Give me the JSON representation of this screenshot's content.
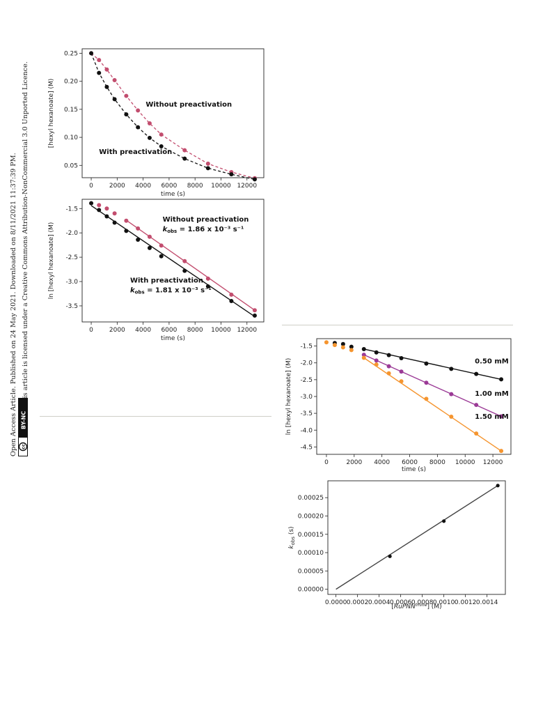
{
  "sidebar": {
    "line1": "Open Access Article. Published on 24 May 2021. Downloaded on 8/11/2021 11:37:39 PM.",
    "line2": "This article is licensed under a Creative Commons Attribution-NonCommercial 3.0 Unported Licence.",
    "badge_cc": "cc",
    "badge_text": "BY-NC"
  },
  "colors": {
    "black": "#111111",
    "pink": "#c24d6e",
    "purple": "#9b3a96",
    "orange": "#f5952f",
    "line_gray": "#444444"
  },
  "chart_data": [
    {
      "type": "line",
      "xlabel": "time (s)",
      "ylabel": "[hexyl hexanoate] (M)",
      "xlim": [
        -700,
        13300
      ],
      "ylim": [
        0.028,
        0.258
      ],
      "xticks": [
        0,
        2000,
        4000,
        6000,
        8000,
        10000,
        12000
      ],
      "yticks": [
        0.05,
        0.1,
        0.15,
        0.2,
        0.25
      ],
      "ytick_labels": [
        "0.05",
        "0.10",
        "0.15",
        "0.20",
        "0.25"
      ],
      "annotations": [
        {
          "text": "Without preactivation",
          "x": 4200,
          "y": 0.155
        },
        {
          "text": "With preactivation",
          "x": 600,
          "y": 0.07
        }
      ],
      "series": [
        {
          "color": "#c24d6e",
          "dashed": true,
          "x": [
            0,
            600,
            1200,
            1800,
            2700,
            3600,
            4500,
            5400,
            7200,
            9000,
            10800,
            12600
          ],
          "y": [
            0.25,
            0.238,
            0.221,
            0.202,
            0.174,
            0.148,
            0.125,
            0.105,
            0.077,
            0.053,
            0.038,
            0.027
          ]
        },
        {
          "color": "#111111",
          "dashed": true,
          "x": [
            0,
            600,
            1200,
            1800,
            2700,
            3600,
            4500,
            5400,
            7200,
            9000,
            10800,
            12600
          ],
          "y": [
            0.25,
            0.215,
            0.19,
            0.168,
            0.141,
            0.118,
            0.099,
            0.084,
            0.062,
            0.045,
            0.034,
            0.025
          ]
        }
      ]
    },
    {
      "type": "line",
      "xlabel": "time (s)",
      "ylabel": "ln [hexyl hexanoate] (M)",
      "xlim": [
        -700,
        13300
      ],
      "ylim": [
        -3.83,
        -1.31
      ],
      "xticks": [
        0,
        2000,
        4000,
        6000,
        8000,
        10000,
        12000
      ],
      "yticks": [
        -1.5,
        -2.0,
        -2.5,
        -3.0,
        -3.5
      ],
      "ytick_labels": [
        "-1.5",
        "-2.0",
        "-2.5",
        "-3.0",
        "-3.5"
      ],
      "annotations": [
        {
          "text": "Without preactivation",
          "x": 5500,
          "y": -1.77
        },
        {
          "text": "kobs = 1.86 x 10⁻³ s⁻¹",
          "x": 5500,
          "y": -1.97
        },
        {
          "text": "With preactivation",
          "x": 3000,
          "y": -3.02
        },
        {
          "text": "kobs = 1.81 x 10⁻³ s⁻¹",
          "x": 3000,
          "y": -3.22
        }
      ],
      "series": [
        {
          "color": "#c24d6e",
          "fit": [
            [
              2700,
              -1.74
            ],
            [
              12600,
              -3.59
            ]
          ],
          "x": [
            600,
            1200,
            1800,
            2700,
            3600,
            4500,
            5400,
            7200,
            9000,
            10800,
            12600
          ],
          "y": [
            -1.43,
            -1.5,
            -1.6,
            -1.75,
            -1.91,
            -2.08,
            -2.26,
            -2.58,
            -2.94,
            -3.27,
            -3.59
          ]
        },
        {
          "color": "#111111",
          "fit": [
            [
              0,
              -1.44
            ],
            [
              12600,
              -3.72
            ]
          ],
          "x": [
            0,
            600,
            1200,
            1800,
            2700,
            3600,
            4500,
            5400,
            7200,
            9000,
            10800,
            12600
          ],
          "y": [
            -1.39,
            -1.53,
            -1.66,
            -1.79,
            -1.96,
            -2.14,
            -2.31,
            -2.48,
            -2.78,
            -3.1,
            -3.4,
            -3.7
          ]
        }
      ]
    },
    {
      "type": "line",
      "xlabel": "time (s)",
      "ylabel": "ln [hexyl hexanoate] (M)",
      "xlim": [
        -700,
        13300
      ],
      "ylim": [
        -4.72,
        -1.28
      ],
      "xticks": [
        0,
        2000,
        4000,
        6000,
        8000,
        10000,
        12000
      ],
      "yticks": [
        -1.5,
        -2.0,
        -2.5,
        -3.0,
        -3.5,
        -4.0,
        -4.5
      ],
      "ytick_labels": [
        "-1.5",
        "-2.0",
        "-2.5",
        "-3.0",
        "-3.5",
        "-4.0",
        "-4.5"
      ],
      "annotations": [
        {
          "text": "0.50 mM",
          "x": 10700,
          "y": -2.02
        },
        {
          "text": "1.00 mM",
          "x": 10700,
          "y": -2.98
        },
        {
          "text": "1.50 mM",
          "x": 10700,
          "y": -3.66
        }
      ],
      "series": [
        {
          "color": "#111111",
          "fit": [
            [
              2700,
              -1.59
            ],
            [
              12600,
              -2.49
            ]
          ],
          "x": [
            600,
            1200,
            1800,
            2700,
            3600,
            4500,
            5400,
            7200,
            9000,
            10800,
            12600
          ],
          "y": [
            -1.41,
            -1.44,
            -1.52,
            -1.59,
            -1.69,
            -1.77,
            -1.86,
            -2.02,
            -2.18,
            -2.33,
            -2.49
          ]
        },
        {
          "color": "#9b3a96",
          "fit": [
            [
              2700,
              -1.76
            ],
            [
              12600,
              -3.59
            ]
          ],
          "x": [
            2700,
            3600,
            4500,
            5400,
            7200,
            9000,
            10800,
            12600
          ],
          "y": [
            -1.76,
            -1.93,
            -2.1,
            -2.26,
            -2.59,
            -2.93,
            -3.25,
            -3.59
          ]
        },
        {
          "color": "#f5952f",
          "fit": [
            [
              2700,
              -1.85
            ],
            [
              12600,
              -4.62
            ]
          ],
          "x": [
            0,
            600,
            1200,
            1800,
            2700,
            3600,
            4500,
            5400,
            7200,
            9000,
            10800,
            12600
          ],
          "y": [
            -1.39,
            -1.47,
            -1.54,
            -1.62,
            -1.85,
            -2.05,
            -2.31,
            -2.55,
            -3.07,
            -3.6,
            -4.1,
            -4.62
          ]
        }
      ]
    },
    {
      "type": "scatter",
      "xlabel": "[RuPNNimine] (M)",
      "ylabel": "kobs (s)",
      "xlim": [
        -7.5e-05,
        0.00157
      ],
      "ylim": [
        -1.4e-05,
        0.000296
      ],
      "xticks": [
        0,
        0.0002,
        0.0004,
        0.0006,
        0.0008,
        0.001,
        0.0012,
        0.0014
      ],
      "xtick_labels": [
        "0.0000",
        "0.0002",
        "0.0004",
        "0.0006",
        "0.0008",
        "0.0010",
        "0.0012",
        "0.0014"
      ],
      "yticks": [
        0,
        5e-05,
        0.0001,
        0.00015,
        0.0002,
        0.00025
      ],
      "ytick_labels": [
        "0.00000",
        "0.00005",
        "0.00010",
        "0.00015",
        "0.00020",
        "0.00025"
      ],
      "series": [
        {
          "color": "#111111",
          "fit": [
            [
              0,
              0.0
            ],
            [
              0.0015,
              0.000283
            ]
          ],
          "x": [
            0.0005,
            0.001,
            0.0015
          ],
          "y": [
            9e-05,
            0.000186,
            0.000283
          ]
        }
      ]
    }
  ]
}
